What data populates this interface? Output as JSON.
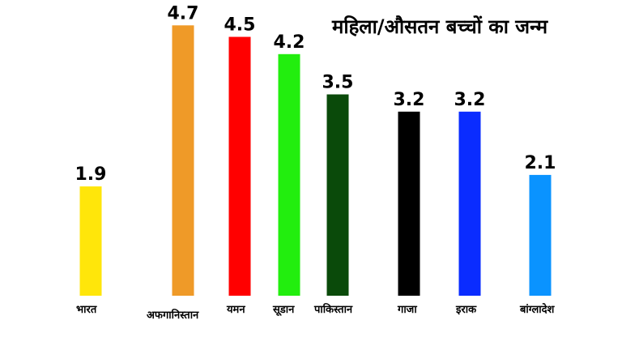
{
  "chart_data": {
    "type": "bar",
    "title": "महिला/औसतन बच्चों का जन्म",
    "xlabel": "",
    "ylabel": "",
    "ylim": [
      0,
      5
    ],
    "grid": false,
    "legend": "none",
    "categories": [
      "भारत",
      "अफगानिस्तान",
      "यमन",
      "सूडान",
      "पाकिस्तान",
      "गाजा",
      "इराक",
      "बांग्लादेश"
    ],
    "values": [
      1.9,
      4.7,
      4.5,
      4.2,
      3.5,
      3.2,
      3.2,
      2.1
    ],
    "value_labels": [
      "1.9",
      "4.7",
      "4.5",
      "4.2",
      "3.5",
      "3.2",
      "3.2",
      "2.1"
    ],
    "colors": [
      "#ffe60a",
      "#ef9a28",
      "#ff0000",
      "#22ee0e",
      "#0a4a0a",
      "#000000",
      "#0a2cff",
      "#0a93ff"
    ]
  }
}
